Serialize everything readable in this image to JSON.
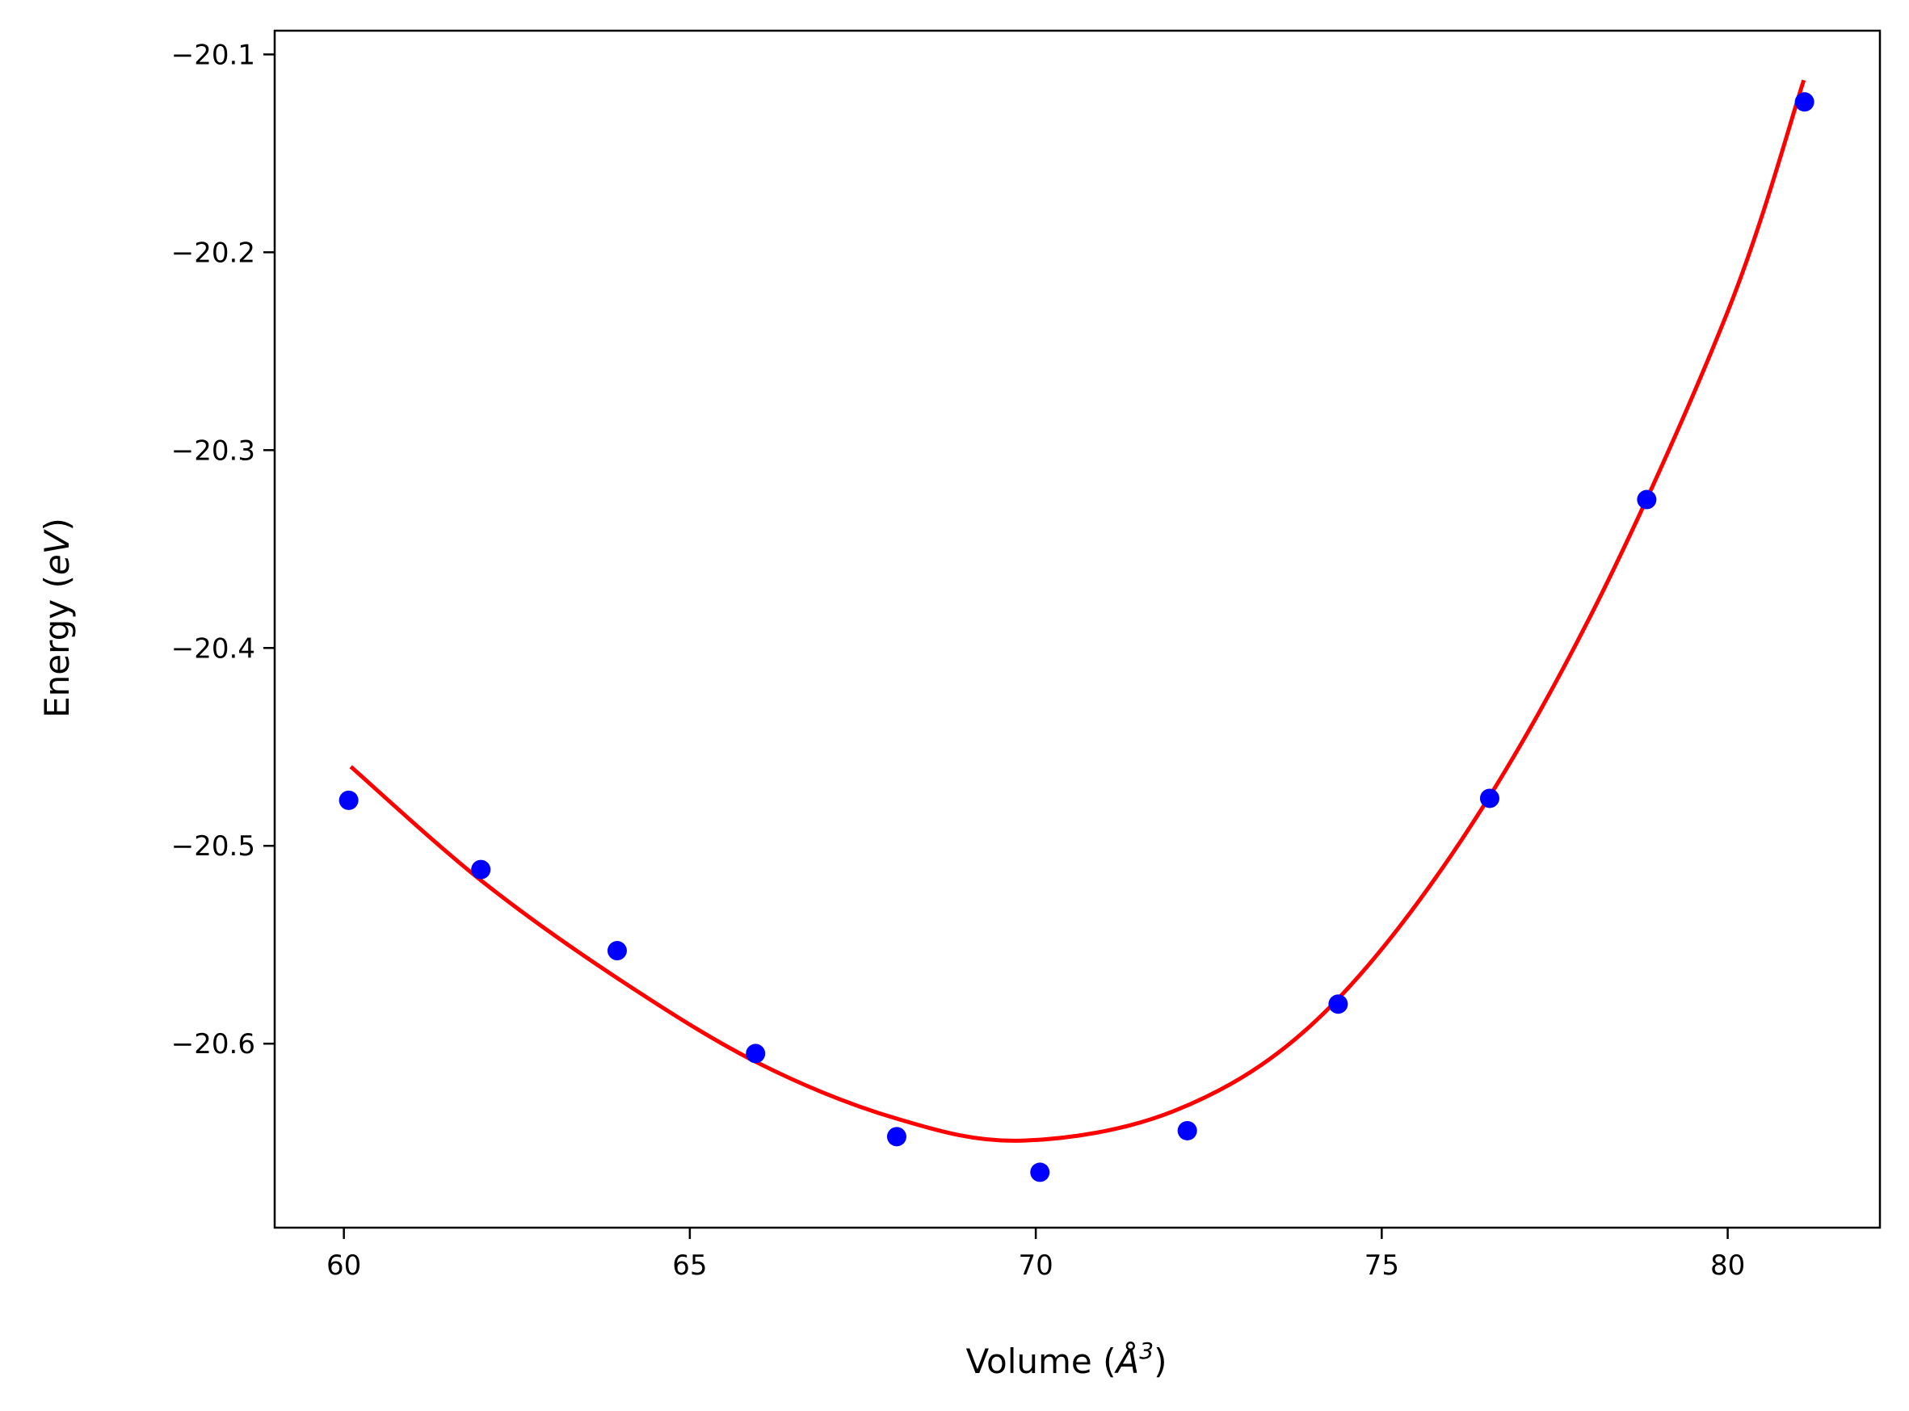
{
  "chart_data": {
    "type": "scatter",
    "title": "",
    "xlabel": "Volume (Å³)",
    "xlabel_parts": {
      "prefix": "Volume (",
      "unit": "Å",
      "exponent": "3",
      "suffix": ")"
    },
    "ylabel": "Energy (eV)",
    "ylabel_parts": {
      "prefix": "Energy (",
      "unit": "eV",
      "suffix": ")"
    },
    "xlim": [
      59.0,
      82.2
    ],
    "ylim": [
      -20.693,
      -20.088
    ],
    "x_ticks": [
      {
        "value": 60,
        "label": "60"
      },
      {
        "value": 65,
        "label": "65"
      },
      {
        "value": 70,
        "label": "70"
      },
      {
        "value": 75,
        "label": "75"
      },
      {
        "value": 80,
        "label": "80"
      }
    ],
    "y_ticks": [
      {
        "value": -20.1,
        "label": "−20.1"
      },
      {
        "value": -20.2,
        "label": "−20.2"
      },
      {
        "value": -20.3,
        "label": "−20.3"
      },
      {
        "value": -20.4,
        "label": "−20.4"
      },
      {
        "value": -20.5,
        "label": "−20.5"
      },
      {
        "value": -20.6,
        "label": "−20.6"
      }
    ],
    "grid": false,
    "series": [
      {
        "kind": "scatter",
        "color": "#0000ff",
        "x": [
          60.07,
          61.98,
          63.95,
          65.95,
          67.99,
          70.06,
          72.19,
          74.37,
          76.56,
          78.83,
          81.11
        ],
        "y": [
          -20.477,
          -20.512,
          -20.553,
          -20.605,
          -20.647,
          -20.665,
          -20.644,
          -20.58,
          -20.476,
          -20.325,
          -20.124
        ]
      },
      {
        "kind": "line",
        "color": "#ff0000",
        "x": [
          60.1,
          62.0,
          64.0,
          66.0,
          68.0,
          69.8,
          72.0,
          74.0,
          76.0,
          78.0,
          80.0,
          81.1
        ],
        "y": [
          -20.46,
          -20.518,
          -20.568,
          -20.61,
          -20.638,
          -20.649,
          -20.634,
          -20.59,
          -20.505,
          -20.385,
          -20.23,
          -20.113
        ]
      }
    ]
  }
}
